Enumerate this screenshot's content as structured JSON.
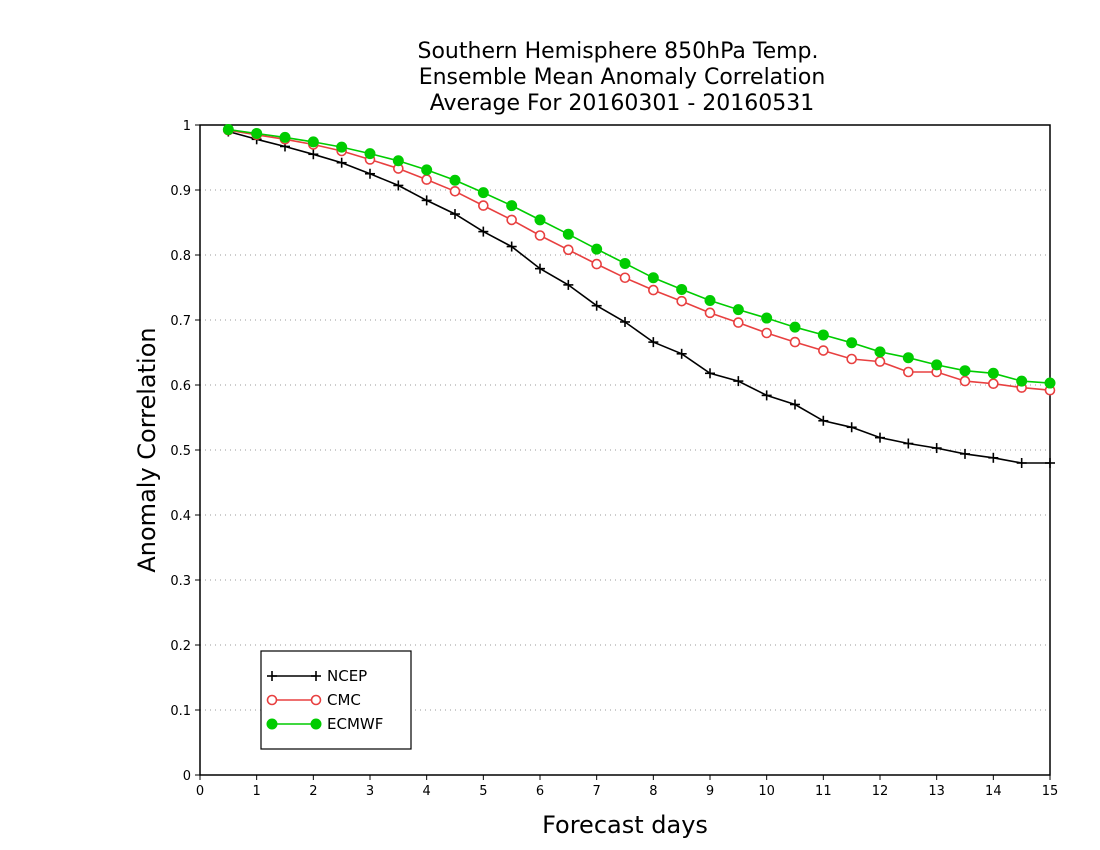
{
  "chart_data": {
    "type": "line",
    "title_lines": [
      "Southern Hemisphere 850hPa Temp.",
      "Ensemble Mean Anomaly Correlation",
      "Average For 20160301 - 20160531"
    ],
    "xlabel": "Forecast days",
    "ylabel": "Anomaly Correlation",
    "xlim": [
      0,
      15
    ],
    "ylim": [
      0,
      1
    ],
    "x_ticks": [
      "0",
      "1",
      "2",
      "3",
      "4",
      "5",
      "6",
      "7",
      "8",
      "9",
      "10",
      "11",
      "12",
      "13",
      "14",
      "15"
    ],
    "y_ticks": [
      "0",
      "0.1",
      "0.2",
      "0.3",
      "0.4",
      "0.5",
      "0.6",
      "0.7",
      "0.8",
      "0.9",
      "1"
    ],
    "grid": "horizontal-dotted",
    "legend_position": "bottom-left",
    "x": [
      0.5,
      1,
      1.5,
      2,
      2.5,
      3,
      3.5,
      4,
      4.5,
      5,
      5.5,
      6,
      6.5,
      7,
      7.5,
      8,
      8.5,
      9,
      9.5,
      10,
      10.5,
      11,
      11.5,
      12,
      12.5,
      13,
      13.5,
      14,
      14.5,
      15
    ],
    "series": [
      {
        "name": "NCEP",
        "color": "#000000",
        "marker": "plus",
        "values": [
          0.99,
          0.978,
          0.967,
          0.955,
          0.942,
          0.925,
          0.907,
          0.884,
          0.863,
          0.836,
          0.813,
          0.779,
          0.754,
          0.722,
          0.697,
          0.666,
          0.648,
          0.618,
          0.606,
          0.584,
          0.57,
          0.545,
          0.535,
          0.519,
          0.51,
          0.503,
          0.494,
          0.488,
          0.48,
          0.48
        ]
      },
      {
        "name": "CMC",
        "color": "#e84040",
        "marker": "open-circle",
        "values": [
          0.992,
          0.985,
          0.978,
          0.97,
          0.96,
          0.947,
          0.933,
          0.916,
          0.898,
          0.876,
          0.854,
          0.83,
          0.808,
          0.786,
          0.765,
          0.746,
          0.729,
          0.711,
          0.696,
          0.68,
          0.666,
          0.653,
          0.64,
          0.636,
          0.62,
          0.62,
          0.606,
          0.602,
          0.596,
          0.592
        ]
      },
      {
        "name": "ECMWF",
        "color": "#00cc00",
        "marker": "filled-circle",
        "values": [
          0.993,
          0.987,
          0.981,
          0.974,
          0.966,
          0.956,
          0.945,
          0.931,
          0.915,
          0.896,
          0.876,
          0.854,
          0.832,
          0.809,
          0.787,
          0.765,
          0.747,
          0.73,
          0.716,
          0.703,
          0.689,
          0.677,
          0.665,
          0.651,
          0.642,
          0.631,
          0.622,
          0.618,
          0.606,
          0.603
        ]
      }
    ]
  }
}
